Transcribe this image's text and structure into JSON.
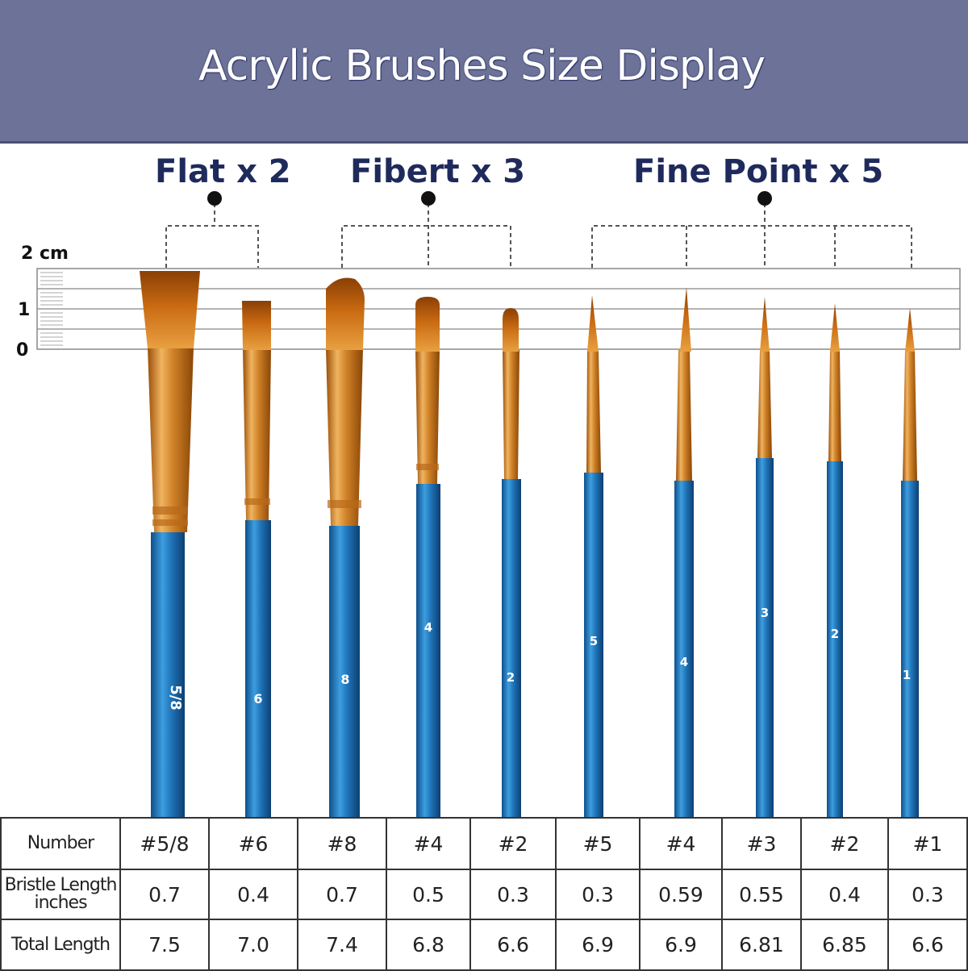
{
  "banner": {
    "title": "Acrylic Brushes Size Display",
    "color": "#6d7398"
  },
  "groups": [
    {
      "label": "Flat x 2"
    },
    {
      "label": "Fibert x 3"
    },
    {
      "label": "Fine Point x 5"
    }
  ],
  "ruler": {
    "unit_label": "2 cm",
    "mid_label": "1",
    "zero_label": "0"
  },
  "brushes": [
    {
      "handle_text": "5/8"
    },
    {
      "handle_text": "6"
    },
    {
      "handle_text": "8"
    },
    {
      "handle_text": "4"
    },
    {
      "handle_text": "2"
    },
    {
      "handle_text": "5"
    },
    {
      "handle_text": "4"
    },
    {
      "handle_text": "3"
    },
    {
      "handle_text": "2"
    },
    {
      "handle_text": "1"
    }
  ],
  "colors": {
    "handle": "#1f74b8",
    "handle_light": "#4aa3e0",
    "bristle": "#c96a12",
    "ferrule": "#e0a048"
  },
  "table": {
    "row_labels": [
      "Number",
      "Bristle Length",
      "inches",
      "Total Length"
    ],
    "number": [
      "#5/8",
      "#6",
      "#8",
      "#4",
      "#2",
      "#5",
      "#4",
      "#3",
      "#2",
      "#1"
    ],
    "bristle_length": [
      "0.7",
      "0.4",
      "0.7",
      "0.5",
      "0.3",
      "0.3",
      "0.59",
      "0.55",
      "0.4",
      "0.3"
    ],
    "total_length": [
      "7.5",
      "7.0",
      "7.4",
      "6.8",
      "6.6",
      "6.9",
      "6.9",
      "6.81",
      "6.85",
      "6.6"
    ]
  }
}
